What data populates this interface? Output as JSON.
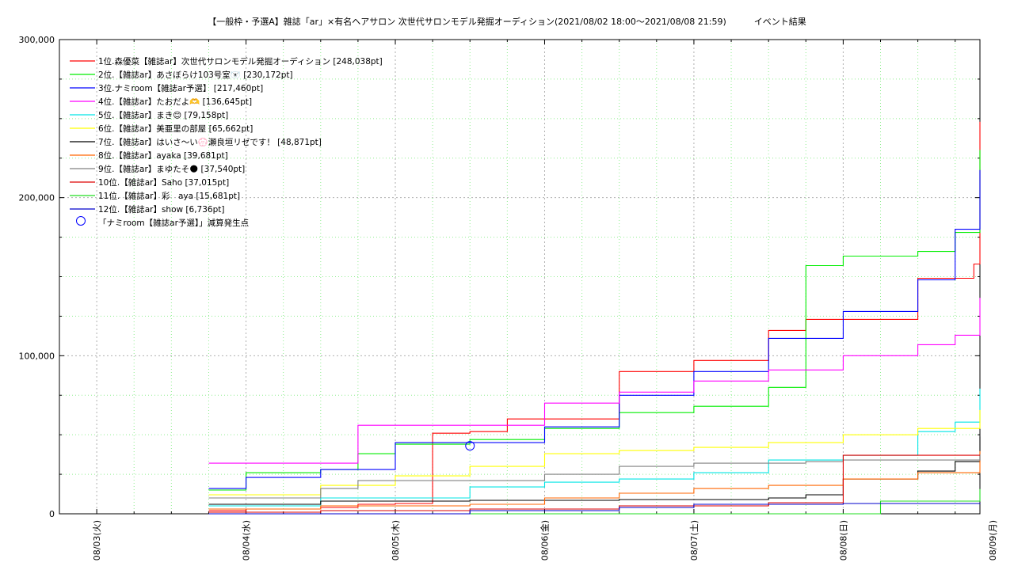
{
  "chart_data": {
    "type": "line",
    "title": "【一般枠・予選A】雑誌「ar」×有名ヘアサロン 次世代サロンモデル発掘オーディション(2021/08/02 18:00〜2021/08/08 21:59)          イベント結果",
    "xlabel": "",
    "ylabel": "",
    "ylim": [
      0,
      300000
    ],
    "xlim": [
      "2021-08-02 18:00",
      "2021-08-08 21:59"
    ],
    "grid": true,
    "legend_position": "top-left",
    "y_ticks": [
      "0",
      "100,000",
      "200,000",
      "300,000"
    ],
    "x_ticks": [
      "08/03(火)",
      "08/04(水)",
      "08/05(木)",
      "08/06(金)",
      "08/07(土)",
      "08/08(日)",
      "08/09(月)"
    ],
    "series": [
      {
        "name": "1位.森優菜【雑誌ar】次世代サロンモデル発掘オーディション [248,038pt]",
        "color": "#ff0000",
        "x": [
          "2021-08-03 18:00",
          "2021-08-04 00:00",
          "2021-08-04 12:00",
          "2021-08-04 18:00",
          "2021-08-05 00:00",
          "2021-08-05 06:00",
          "2021-08-05 12:00",
          "2021-08-05 18:00",
          "2021-08-06 00:00",
          "2021-08-06 12:00",
          "2021-08-07 00:00",
          "2021-08-07 12:00",
          "2021-08-07 18:00",
          "2021-08-08 00:00",
          "2021-08-08 12:00",
          "2021-08-08 21:00",
          "2021-08-08 21:59"
        ],
        "y": [
          2000,
          3000,
          4000,
          6000,
          6500,
          51000,
          52000,
          60000,
          60000,
          90000,
          97000,
          116000,
          123000,
          123000,
          149000,
          158000,
          248038
        ]
      },
      {
        "name": "2位.【雑誌ar】あさぼらけ103号室🐻‍❄️ [230,172pt]",
        "color": "#00ee00",
        "x": [
          "2021-08-03 18:00",
          "2021-08-04 00:00",
          "2021-08-04 12:00",
          "2021-08-04 18:00",
          "2021-08-05 00:00",
          "2021-08-05 12:00",
          "2021-08-06 00:00",
          "2021-08-06 12:00",
          "2021-08-07 00:00",
          "2021-08-07 12:00",
          "2021-08-07 18:00",
          "2021-08-08 00:00",
          "2021-08-08 12:00",
          "2021-08-08 18:00",
          "2021-08-08 21:59"
        ],
        "y": [
          15000,
          26000,
          28000,
          38000,
          44000,
          47000,
          54000,
          64000,
          68000,
          80000,
          157000,
          163000,
          166000,
          178000,
          230172
        ]
      },
      {
        "name": "3位.ナミroom【雑誌ar予選】 [217,460pt]",
        "color": "#0000ff",
        "x": [
          "2021-08-03 18:00",
          "2021-08-04 00:00",
          "2021-08-04 12:00",
          "2021-08-05 00:00",
          "2021-08-05 12:00",
          "2021-08-06 00:00",
          "2021-08-06 12:00",
          "2021-08-07 00:00",
          "2021-08-07 12:00",
          "2021-08-08 00:00",
          "2021-08-08 12:00",
          "2021-08-08 18:00",
          "2021-08-08 21:59"
        ],
        "y": [
          16000,
          23000,
          28000,
          45000,
          45000,
          55000,
          75000,
          90000,
          111000,
          128000,
          148000,
          180000,
          217460
        ]
      },
      {
        "name": "4位.【雑誌ar】たおだよ🫶 [136,645pt]",
        "color": "#ff00ff",
        "x": [
          "2021-08-03 18:00",
          "2021-08-04 12:00",
          "2021-08-04 18:00",
          "2021-08-05 12:00",
          "2021-08-06 00:00",
          "2021-08-06 12:00",
          "2021-08-07 00:00",
          "2021-08-07 12:00",
          "2021-08-08 00:00",
          "2021-08-08 12:00",
          "2021-08-08 18:00",
          "2021-08-08 21:59"
        ],
        "y": [
          32000,
          32000,
          56000,
          56000,
          70000,
          77000,
          84000,
          91000,
          100000,
          107000,
          113000,
          136645
        ]
      },
      {
        "name": "5位.【雑誌ar】まき😊 [79,158pt]",
        "color": "#00e5e5",
        "x": [
          "2021-08-03 18:00",
          "2021-08-04 12:00",
          "2021-08-05 12:00",
          "2021-08-06 00:00",
          "2021-08-06 12:00",
          "2021-08-07 00:00",
          "2021-08-07 12:00",
          "2021-08-08 00:00",
          "2021-08-08 12:00",
          "2021-08-08 18:00",
          "2021-08-08 21:59"
        ],
        "y": [
          5000,
          10000,
          17000,
          20000,
          22000,
          26000,
          34000,
          37000,
          52000,
          58000,
          79158
        ]
      },
      {
        "name": "6位.【雑誌ar】美亜里の部屋 [65,662pt]",
        "color": "#ffff00",
        "x": [
          "2021-08-03 18:00",
          "2021-08-04 12:00",
          "2021-08-05 00:00",
          "2021-08-05 12:00",
          "2021-08-06 00:00",
          "2021-08-06 12:00",
          "2021-08-07 00:00",
          "2021-08-07 12:00",
          "2021-08-08 00:00",
          "2021-08-08 12:00",
          "2021-08-08 21:59"
        ],
        "y": [
          12000,
          18000,
          24000,
          30000,
          38000,
          40000,
          42000,
          45000,
          50000,
          54000,
          65662
        ]
      },
      {
        "name": "7位.【雑誌ar】はいさ〜い💮瀬良垣リゼです！ [48,871pt]",
        "color": "#000000",
        "x": [
          "2021-08-03 18:00",
          "2021-08-04 12:00",
          "2021-08-05 12:00",
          "2021-08-06 12:00",
          "2021-08-07 12:00",
          "2021-08-07 18:00",
          "2021-08-08 00:00",
          "2021-08-08 12:00",
          "2021-08-08 18:00",
          "2021-08-08 21:59"
        ],
        "y": [
          6000,
          8000,
          8500,
          9000,
          10000,
          12000,
          22000,
          27000,
          33000,
          48871
        ]
      },
      {
        "name": "8位.【雑誌ar】ayaka [39,681pt]",
        "color": "#ff6600",
        "x": [
          "2021-08-03 18:00",
          "2021-08-04 12:00",
          "2021-08-05 12:00",
          "2021-08-06 00:00",
          "2021-08-06 12:00",
          "2021-08-07 00:00",
          "2021-08-07 12:00",
          "2021-08-08 00:00",
          "2021-08-08 12:00",
          "2021-08-08 21:59"
        ],
        "y": [
          3000,
          5000,
          6000,
          10000,
          13000,
          16000,
          18000,
          22000,
          26000,
          39681
        ]
      },
      {
        "name": "9位.【雑誌ar】まゆたそ🌑 [37,540pt]",
        "color": "#808080",
        "x": [
          "2021-08-03 18:00",
          "2021-08-04 12:00",
          "2021-08-04 18:00",
          "2021-08-05 12:00",
          "2021-08-06 00:00",
          "2021-08-06 12:00",
          "2021-08-07 00:00",
          "2021-08-07 18:00",
          "2021-08-08 00:00",
          "2021-08-08 21:59"
        ],
        "y": [
          10000,
          16000,
          21000,
          21000,
          25000,
          30000,
          32000,
          33000,
          34000,
          37540
        ]
      },
      {
        "name": "10位.【雑誌ar】Saho [37,015pt]",
        "color": "#dd0000",
        "x": [
          "2021-08-03 18:00",
          "2021-08-04 12:00",
          "2021-08-05 12:00",
          "2021-08-06 12:00",
          "2021-08-07 12:00",
          "2021-08-08 00:00",
          "2021-08-08 12:00",
          "2021-08-08 21:59"
        ],
        "y": [
          1000,
          2000,
          3000,
          5000,
          7000,
          37000,
          37000,
          37015
        ]
      },
      {
        "name": "11位.【雑誌ar】彩　aya [15,681pt]",
        "color": "#22dd22",
        "x": [
          "2021-08-03 18:00",
          "2021-08-07 18:00",
          "2021-08-08 00:00",
          "2021-08-08 06:00",
          "2021-08-08 12:00",
          "2021-08-08 21:59"
        ],
        "y": [
          0,
          0,
          0,
          8000,
          8000,
          15681
        ]
      },
      {
        "name": "12位.【雑誌ar】show [6,736pt]",
        "color": "#0000cc",
        "x": [
          "2021-08-03 18:00",
          "2021-08-05 12:00",
          "2021-08-06 12:00",
          "2021-08-07 00:00",
          "2021-08-08 00:00",
          "2021-08-08 21:59"
        ],
        "y": [
          0,
          2000,
          4000,
          6000,
          6500,
          6736
        ]
      }
    ],
    "markers": [
      {
        "label": "「ナミroom【雑誌ar予選】」減算発生点",
        "x": "2021-08-05 12:00",
        "y": 43000,
        "color": "#0000ff"
      }
    ]
  }
}
